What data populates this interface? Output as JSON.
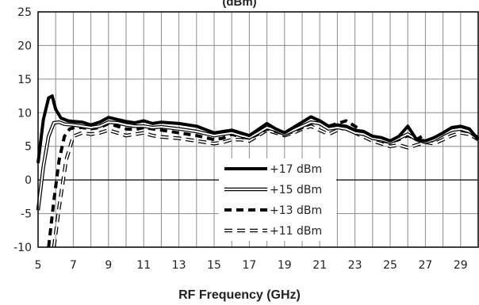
{
  "chart_data": {
    "type": "line",
    "title": "(dBm)",
    "xlabel": "RF Frequency (GHz)",
    "ylabel": "",
    "xlim": [
      5,
      30
    ],
    "ylim": [
      -10,
      25
    ],
    "xticks": [
      5,
      7,
      9,
      11,
      13,
      15,
      17,
      19,
      21,
      23,
      25,
      27,
      29
    ],
    "yticks": [
      -10,
      -5,
      0,
      5,
      10,
      15,
      20,
      25
    ],
    "grid": true,
    "legend_position": "center-bottom",
    "series": [
      {
        "name": "+17 dBm",
        "style": "thick-solid",
        "color": "#000000",
        "x": [
          5,
          5.3,
          5.6,
          5.8,
          6.0,
          6.3,
          6.7,
          7.0,
          7.5,
          8,
          8.5,
          9,
          9.5,
          10,
          10.5,
          11,
          11.5,
          12,
          13,
          14,
          15,
          15.5,
          16,
          16.5,
          17,
          17.5,
          18,
          18.5,
          19,
          19.5,
          20,
          20.5,
          21,
          21.5,
          22,
          22.5,
          23,
          23.5,
          24,
          24.5,
          25,
          25.5,
          26,
          26.5,
          27,
          27.5,
          28,
          28.5,
          29,
          29.5,
          30
        ],
        "y": [
          2.5,
          9,
          12.2,
          12.5,
          10.5,
          9.2,
          8.8,
          8.7,
          8.6,
          8.2,
          8.6,
          9.3,
          9.0,
          8.7,
          8.5,
          8.8,
          8.4,
          8.6,
          8.4,
          8.0,
          7.0,
          7.2,
          7.4,
          7.0,
          6.6,
          7.5,
          8.4,
          7.6,
          7.0,
          7.8,
          8.6,
          9.4,
          8.8,
          8.0,
          8.2,
          8.0,
          7.4,
          7.2,
          6.5,
          6.3,
          5.8,
          6.5,
          8.0,
          6.0,
          5.8,
          6.3,
          7.0,
          7.8,
          8.0,
          7.6,
          6.0
        ]
      },
      {
        "name": "+15 dBm",
        "style": "hollow",
        "color": "#000000",
        "x": [
          5,
          5.3,
          5.6,
          5.9,
          6.2,
          6.5,
          7.0,
          7.5,
          8,
          8.5,
          9,
          9.5,
          10,
          10.5,
          11,
          11.5,
          12,
          13,
          14,
          15,
          15.5,
          16,
          16.5,
          17,
          17.5,
          18,
          18.5,
          19,
          19.5,
          20,
          20.5,
          21,
          21.5,
          22,
          22.5,
          23,
          23.5,
          24,
          24.5,
          25,
          25.5,
          26,
          26.5,
          27,
          27.5,
          28,
          28.5,
          29,
          29.5,
          30
        ],
        "y": [
          -4.5,
          2,
          6.5,
          8.5,
          8.6,
          8.3,
          8.2,
          8.0,
          7.8,
          8.0,
          8.6,
          8.5,
          8.2,
          8.0,
          8.0,
          7.8,
          7.9,
          7.6,
          7.2,
          6.6,
          6.8,
          7.0,
          6.6,
          6.3,
          7.0,
          7.8,
          7.4,
          6.8,
          7.4,
          8.0,
          8.6,
          8.4,
          7.6,
          7.8,
          7.6,
          7.0,
          6.8,
          6.2,
          6.0,
          5.6,
          6.2,
          6.8,
          6.0,
          5.6,
          6.0,
          6.8,
          7.4,
          7.6,
          7.2,
          6.2
        ]
      },
      {
        "name": "+13 dBm",
        "style": "dashed",
        "color": "#000000",
        "x": [
          5.6,
          5.9,
          6.2,
          6.5,
          6.8,
          7.1,
          7.5,
          8,
          8.5,
          9,
          9.5,
          10,
          10.5,
          11,
          11.5,
          12,
          13,
          14,
          15,
          15.5,
          16,
          16.5,
          17,
          17.5,
          18,
          18.5,
          19,
          19.5,
          20,
          20.5,
          21,
          21.5,
          22,
          22.5,
          23,
          23.5,
          24,
          24.5,
          25,
          25.5,
          26,
          26.5,
          27
        ],
        "y": [
          -10,
          -3,
          3,
          6.5,
          7.6,
          7.8,
          7.8,
          7.6,
          7.8,
          8.4,
          8.0,
          7.6,
          7.5,
          7.8,
          7.6,
          7.4,
          7.0,
          6.6,
          6.0,
          6.2,
          6.8,
          6.4,
          6.2,
          6.8,
          7.6,
          7.2,
          6.8,
          7.2,
          7.8,
          8.4,
          8.8,
          8.0,
          8.4,
          8.8,
          8.0,
          7.0,
          6.4,
          5.8,
          5.6,
          6.0,
          6.6,
          6.0,
          6.8
        ]
      },
      {
        "name": "+11 dBm",
        "style": "dashed-hollow",
        "color": "#000000",
        "x": [
          5.9,
          6.2,
          6.6,
          7.0,
          7.5,
          8,
          8.5,
          9,
          9.5,
          10,
          10.5,
          11,
          11.5,
          12,
          13,
          14,
          15,
          15.5,
          16,
          16.5,
          17,
          17.5,
          18,
          18.5,
          19,
          19.5,
          20,
          20.5,
          21,
          21.5,
          22,
          22.5,
          23,
          23.5,
          24,
          24.5,
          25,
          25.5,
          26,
          26.5,
          27,
          27.5,
          28,
          28.5,
          29,
          29.5,
          30
        ],
        "y": [
          -10,
          -4,
          3,
          6.5,
          7.0,
          6.8,
          7.0,
          7.4,
          7.0,
          6.6,
          6.8,
          7.0,
          6.6,
          6.4,
          6.2,
          5.8,
          5.4,
          5.6,
          6.0,
          6.0,
          5.8,
          6.6,
          7.4,
          7.0,
          6.6,
          7.0,
          7.6,
          8.0,
          7.4,
          6.8,
          7.4,
          7.8,
          7.0,
          6.4,
          5.8,
          5.4,
          5.0,
          5.2,
          4.8,
          5.2,
          5.6,
          5.4,
          6.0,
          6.6,
          7.0,
          6.8,
          6.0
        ]
      }
    ]
  }
}
